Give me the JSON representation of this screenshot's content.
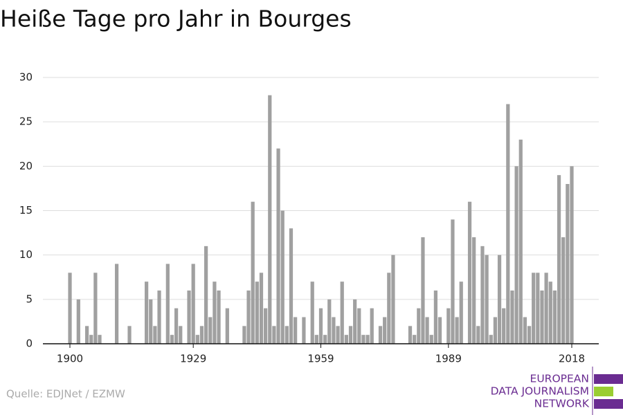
{
  "chart_data": {
    "type": "bar",
    "title": "Heiße Tage pro Jahr in Bourges",
    "source": "Quelle: EDJNet / EZMW",
    "logo": [
      "EUROPEAN",
      "DATA JOURNALISM",
      "NETWORK"
    ],
    "logo_colors": [
      "#6a2c91",
      "#9acd32",
      "#6a2c91"
    ],
    "color": "#a0a0a0",
    "grid": true,
    "x": [
      1900,
      1901,
      1902,
      1903,
      1904,
      1905,
      1906,
      1907,
      1908,
      1909,
      1910,
      1911,
      1912,
      1913,
      1914,
      1915,
      1916,
      1917,
      1918,
      1919,
      1920,
      1921,
      1922,
      1923,
      1924,
      1925,
      1926,
      1927,
      1928,
      1929,
      1930,
      1931,
      1932,
      1933,
      1934,
      1935,
      1936,
      1937,
      1938,
      1939,
      1940,
      1941,
      1942,
      1943,
      1944,
      1945,
      1946,
      1947,
      1948,
      1949,
      1950,
      1951,
      1952,
      1953,
      1954,
      1955,
      1956,
      1957,
      1958,
      1959,
      1960,
      1961,
      1962,
      1963,
      1964,
      1965,
      1966,
      1967,
      1968,
      1969,
      1970,
      1971,
      1972,
      1973,
      1974,
      1975,
      1976,
      1977,
      1978,
      1979,
      1980,
      1981,
      1982,
      1983,
      1984,
      1985,
      1986,
      1987,
      1988,
      1989,
      1990,
      1991,
      1992,
      1993,
      1994,
      1995,
      1996,
      1997,
      1998,
      1999,
      2000,
      2001,
      2002,
      2003,
      2004,
      2005,
      2006,
      2007,
      2008,
      2009,
      2010,
      2011,
      2012,
      2013,
      2014,
      2015,
      2016,
      2017,
      2018
    ],
    "values": [
      8,
      0,
      5,
      0,
      2,
      1,
      8,
      1,
      0,
      0,
      0,
      9,
      0,
      0,
      2,
      0,
      0,
      0,
      7,
      5,
      2,
      6,
      0,
      9,
      1,
      4,
      2,
      0,
      6,
      9,
      1,
      2,
      11,
      3,
      7,
      6,
      0,
      4,
      0,
      0,
      0,
      2,
      6,
      16,
      7,
      8,
      4,
      28,
      2,
      22,
      15,
      2,
      13,
      3,
      0,
      3,
      0,
      7,
      1,
      4,
      1,
      5,
      3,
      2,
      7,
      1,
      2,
      5,
      4,
      1,
      1,
      4,
      0,
      2,
      3,
      8,
      10,
      0,
      0,
      0,
      2,
      1,
      4,
      12,
      3,
      1,
      6,
      3,
      0,
      4,
      14,
      3,
      7,
      0,
      16,
      12,
      2,
      11,
      10,
      1,
      3,
      10,
      4,
      27,
      6,
      20,
      23,
      3,
      2,
      8,
      8,
      6,
      8,
      7,
      6,
      19,
      12,
      18,
      20
    ],
    "xlim": [
      1893.65,
      2024.35
    ],
    "xticks": [
      1900,
      1929,
      1959,
      1989,
      2018
    ],
    "ylim": [
      0,
      30
    ],
    "yticks": [
      0,
      5,
      10,
      15,
      20,
      25,
      30
    ]
  }
}
